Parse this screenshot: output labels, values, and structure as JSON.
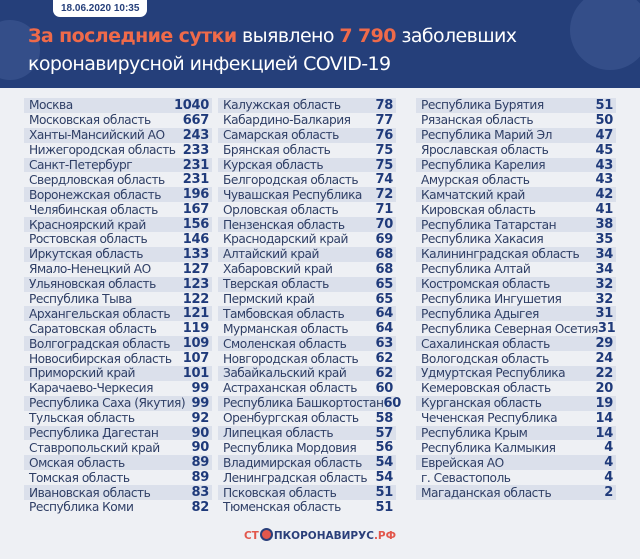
{
  "header": {
    "date": "18.06.2020 10:35",
    "title_highlight": "За последние сутки",
    "title_mid": "выявлено",
    "count": "7 790",
    "title_end": "заболевших",
    "title_line2": "коронавирусной инфекцией COVID-19"
  },
  "colors": {
    "header_bg": "#253f7a",
    "accent": "#ef6a4a",
    "value": "#1f3a7a"
  },
  "columns": [
    [
      [
        "Москва",
        "1040"
      ],
      [
        "Московская область",
        "667"
      ],
      [
        "Ханты-Мансийский АО",
        "243"
      ],
      [
        "Нижегородская область",
        "233"
      ],
      [
        "Санкт-Петербург",
        "231"
      ],
      [
        "Свердловская область",
        "231"
      ],
      [
        "Воронежская область",
        "196"
      ],
      [
        "Челябинская область",
        "167"
      ],
      [
        "Красноярский край",
        "156"
      ],
      [
        "Ростовская область",
        "146"
      ],
      [
        "Иркутская область",
        "133"
      ],
      [
        "Ямало-Ненецкий АО",
        "127"
      ],
      [
        "Ульяновская область",
        "123"
      ],
      [
        "Республика Тыва",
        "122"
      ],
      [
        "Архангельская область",
        "121"
      ],
      [
        "Саратовская область",
        "119"
      ],
      [
        "Волгоградская область",
        "109"
      ],
      [
        "Новосибирская область",
        "107"
      ],
      [
        "Приморский край",
        "101"
      ],
      [
        "Карачаево-Черкесия",
        "99"
      ],
      [
        "Республика Саха (Якутия)",
        "99"
      ],
      [
        "Тульская область",
        "92"
      ],
      [
        "Республика Дагестан",
        "90"
      ],
      [
        "Ставропольский край",
        "90"
      ],
      [
        "Омская область",
        "89"
      ],
      [
        "Томская область",
        "89"
      ],
      [
        "Ивановская область",
        "83"
      ],
      [
        "Республика Коми",
        "82"
      ]
    ],
    [
      [
        "Калужская область",
        "78"
      ],
      [
        "Кабардино-Балкария",
        "77"
      ],
      [
        "Самарская область",
        "76"
      ],
      [
        "Брянская область",
        "75"
      ],
      [
        "Курская область",
        "75"
      ],
      [
        "Белгородская область",
        "74"
      ],
      [
        "Чувашская Республика",
        "72"
      ],
      [
        "Орловская область",
        "71"
      ],
      [
        "Пензенская область",
        "70"
      ],
      [
        "Краснодарский край",
        "69"
      ],
      [
        "Алтайский край",
        "68"
      ],
      [
        "Хабаровский край",
        "68"
      ],
      [
        "Тверская область",
        "65"
      ],
      [
        "Пермский край",
        "65"
      ],
      [
        "Тамбовская область",
        "64"
      ],
      [
        "Мурманская область",
        "64"
      ],
      [
        "Смоленская область",
        "63"
      ],
      [
        "Новгородская область",
        "62"
      ],
      [
        "Забайкальский край",
        "62"
      ],
      [
        "Астраханская область",
        "60"
      ],
      [
        "Республика Башкортостан",
        "60"
      ],
      [
        "Оренбургская область",
        "58"
      ],
      [
        "Липецкая область",
        "57"
      ],
      [
        "Республика Мордовия",
        "56"
      ],
      [
        "Владимирская область",
        "54"
      ],
      [
        "Ленинградская область",
        "54"
      ],
      [
        "Псковская область",
        "51"
      ],
      [
        "Тюменская область",
        "51"
      ]
    ],
    [
      [
        "Республика Бурятия",
        "51"
      ],
      [
        "Рязанская область",
        "50"
      ],
      [
        "Республика Марий Эл",
        "47"
      ],
      [
        "Ярославская область",
        "45"
      ],
      [
        "Республика Карелия",
        "43"
      ],
      [
        "Амурская область",
        "43"
      ],
      [
        "Камчатский край",
        "42"
      ],
      [
        "Кировская область",
        "41"
      ],
      [
        "Республика Татарстан",
        "38"
      ],
      [
        "Республика Хакасия",
        "35"
      ],
      [
        "Калининградская область",
        "34"
      ],
      [
        "Республика Алтай",
        "34"
      ],
      [
        "Костромская область",
        "32"
      ],
      [
        "Республика Ингушетия",
        "32"
      ],
      [
        "Республика Адыгея",
        "31"
      ],
      [
        "Республика Северная Осетия",
        "31"
      ],
      [
        "Сахалинская область",
        "29"
      ],
      [
        "Вологодская область",
        "24"
      ],
      [
        "Удмуртская Республика",
        "22"
      ],
      [
        "Кемеровская область",
        "20"
      ],
      [
        "Курганская область",
        "19"
      ],
      [
        "Чеченская Республика",
        "14"
      ],
      [
        "Республика Крым",
        "14"
      ],
      [
        "Республика Калмыкия",
        "4"
      ],
      [
        "Еврейская АО",
        "4"
      ],
      [
        "г. Севастополь",
        "4"
      ],
      [
        "Магаданская область",
        "2"
      ]
    ]
  ],
  "footer": {
    "logo_a": "СТ",
    "logo_b": "ПКОРОНАВИРУС",
    "logo_c": ".РФ"
  }
}
